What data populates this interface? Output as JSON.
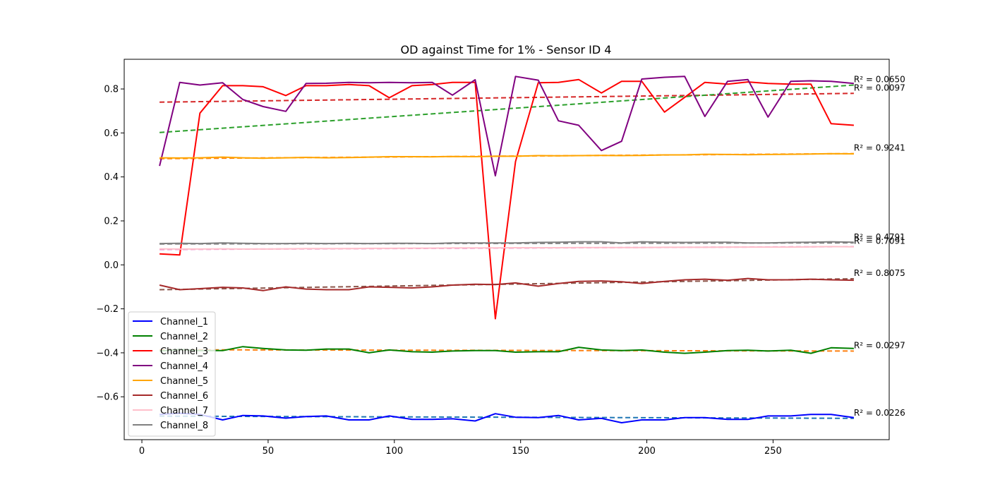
{
  "chart_data": {
    "type": "line",
    "title": "OD against Time for 1% - Sensor ID 4",
    "xlabel": "",
    "ylabel": "",
    "xlim": [
      -7,
      296
    ],
    "ylim": [
      -0.795,
      0.935
    ],
    "xticks": [
      0,
      50,
      100,
      150,
      200,
      250
    ],
    "xtick_labels": [
      "0",
      "50",
      "100",
      "150",
      "200",
      "250"
    ],
    "yticks": [
      -0.6,
      -0.4,
      -0.2,
      0.0,
      0.2,
      0.4,
      0.6,
      0.8
    ],
    "ytick_labels": [
      "−0.6",
      "−0.4",
      "−0.2",
      "0.0",
      "0.2",
      "0.4",
      "0.6",
      "0.8"
    ],
    "grid": false,
    "legend_position": "lower-left",
    "x": [
      7,
      15,
      23,
      32,
      40,
      48,
      57,
      65,
      73,
      82,
      90,
      98,
      107,
      115,
      123,
      132,
      140,
      148,
      157,
      165,
      173,
      182,
      190,
      198,
      207,
      215,
      223,
      232,
      240,
      248,
      257,
      265,
      273,
      282
    ],
    "series": [
      {
        "name": "Channel_1",
        "color": "#0000ff",
        "values": [
          -0.68,
          -0.675,
          -0.68,
          -0.705,
          -0.685,
          -0.687,
          -0.697,
          -0.69,
          -0.687,
          -0.705,
          -0.705,
          -0.687,
          -0.703,
          -0.703,
          -0.7,
          -0.71,
          -0.677,
          -0.693,
          -0.695,
          -0.685,
          -0.705,
          -0.698,
          -0.718,
          -0.705,
          -0.705,
          -0.695,
          -0.695,
          -0.703,
          -0.703,
          -0.687,
          -0.687,
          -0.68,
          -0.68,
          -0.695
        ],
        "trend": {
          "start": -0.688,
          "end": -0.698,
          "color": "#1f77b4"
        },
        "r2": "R² = 0.0226"
      },
      {
        "name": "Channel_2",
        "color": "#008000",
        "values": [
          -0.392,
          -0.385,
          -0.39,
          -0.39,
          -0.372,
          -0.38,
          -0.387,
          -0.388,
          -0.383,
          -0.383,
          -0.4,
          -0.387,
          -0.395,
          -0.397,
          -0.392,
          -0.39,
          -0.39,
          -0.397,
          -0.395,
          -0.395,
          -0.375,
          -0.387,
          -0.39,
          -0.387,
          -0.397,
          -0.402,
          -0.397,
          -0.39,
          -0.388,
          -0.392,
          -0.388,
          -0.402,
          -0.377,
          -0.38
        ],
        "trend": {
          "start": -0.386,
          "end": -0.392,
          "color": "#ff7f0e"
        },
        "r2": "R² = 0.0297"
      },
      {
        "name": "Channel_3",
        "color": "#ff0000",
        "values": [
          0.05,
          0.045,
          0.69,
          0.815,
          0.815,
          0.81,
          0.77,
          0.815,
          0.815,
          0.82,
          0.815,
          0.76,
          0.815,
          0.82,
          0.83,
          0.83,
          -0.245,
          0.47,
          0.828,
          0.83,
          0.843,
          0.782,
          0.835,
          0.835,
          0.695,
          0.762,
          0.83,
          0.822,
          0.832,
          0.825,
          0.822,
          0.822,
          0.642,
          0.635
        ],
        "trend": {
          "start": 0.74,
          "end": 0.78,
          "color": "#d62728"
        },
        "r2": "R² = 0.0097"
      },
      {
        "name": "Channel_4",
        "color": "#800080",
        "values": [
          0.45,
          0.83,
          0.818,
          0.828,
          0.752,
          0.72,
          0.698,
          0.825,
          0.826,
          0.83,
          0.828,
          0.83,
          0.828,
          0.83,
          0.772,
          0.842,
          0.405,
          0.857,
          0.84,
          0.655,
          0.635,
          0.52,
          0.562,
          0.845,
          0.853,
          0.857,
          0.675,
          0.835,
          0.843,
          0.672,
          0.835,
          0.837,
          0.835,
          0.825
        ],
        "trend": {
          "start": 0.602,
          "end": 0.818,
          "color": "#2ca02c"
        },
        "r2": "R² = 0.0650"
      },
      {
        "name": "Channel_5",
        "color": "#ffa500",
        "values": [
          0.487,
          0.486,
          0.487,
          0.49,
          0.487,
          0.485,
          0.487,
          0.489,
          0.487,
          0.488,
          0.49,
          0.492,
          0.492,
          0.491,
          0.493,
          0.492,
          0.494,
          0.494,
          0.497,
          0.496,
          0.497,
          0.498,
          0.497,
          0.498,
          0.5,
          0.5,
          0.503,
          0.502,
          0.501,
          0.502,
          0.503,
          0.504,
          0.506,
          0.505
        ],
        "trend": {
          "start": 0.483,
          "end": 0.506,
          "color": "#ff7f0e"
        },
        "r2": "R² = 0.9241"
      },
      {
        "name": "Channel_6",
        "color": "#a52a2a",
        "values": [
          -0.092,
          -0.113,
          -0.108,
          -0.102,
          -0.105,
          -0.117,
          -0.1,
          -0.11,
          -0.113,
          -0.113,
          -0.1,
          -0.102,
          -0.105,
          -0.1,
          -0.092,
          -0.088,
          -0.09,
          -0.082,
          -0.097,
          -0.085,
          -0.075,
          -0.073,
          -0.077,
          -0.085,
          -0.075,
          -0.068,
          -0.065,
          -0.07,
          -0.062,
          -0.068,
          -0.068,
          -0.065,
          -0.068,
          -0.07
        ],
        "trend": {
          "start": -0.113,
          "end": -0.063,
          "color": "#8c564b"
        },
        "r2": "R² = 0.8075"
      },
      {
        "name": "Channel_7",
        "color": "#ffc0cb",
        "values": [
          0.073,
          0.072,
          0.072,
          0.073,
          0.072,
          0.072,
          0.073,
          0.074,
          0.074,
          0.074,
          0.075,
          0.075,
          0.076,
          0.076,
          0.077,
          0.077,
          0.077,
          0.078,
          0.078,
          0.078,
          0.079,
          0.079,
          0.079,
          0.079,
          0.08,
          0.08,
          0.08,
          0.081,
          0.081,
          0.081,
          0.081,
          0.082,
          0.083,
          0.082
        ],
        "trend": {
          "start": 0.07,
          "end": 0.083,
          "color": "#e377c2"
        },
        "r2": "R² = 0.7091"
      },
      {
        "name": "Channel_8",
        "color": "#808080",
        "values": [
          0.097,
          0.098,
          0.097,
          0.1,
          0.098,
          0.097,
          0.097,
          0.098,
          0.097,
          0.098,
          0.097,
          0.098,
          0.098,
          0.097,
          0.1,
          0.1,
          0.1,
          0.1,
          0.102,
          0.103,
          0.105,
          0.105,
          0.1,
          0.105,
          0.103,
          0.102,
          0.103,
          0.103,
          0.1,
          0.1,
          0.102,
          0.103,
          0.105,
          0.103
        ],
        "trend": {
          "start": 0.095,
          "end": 0.1,
          "color": "#7f7f7f"
        },
        "r2": "R² = 0.4791"
      }
    ]
  }
}
